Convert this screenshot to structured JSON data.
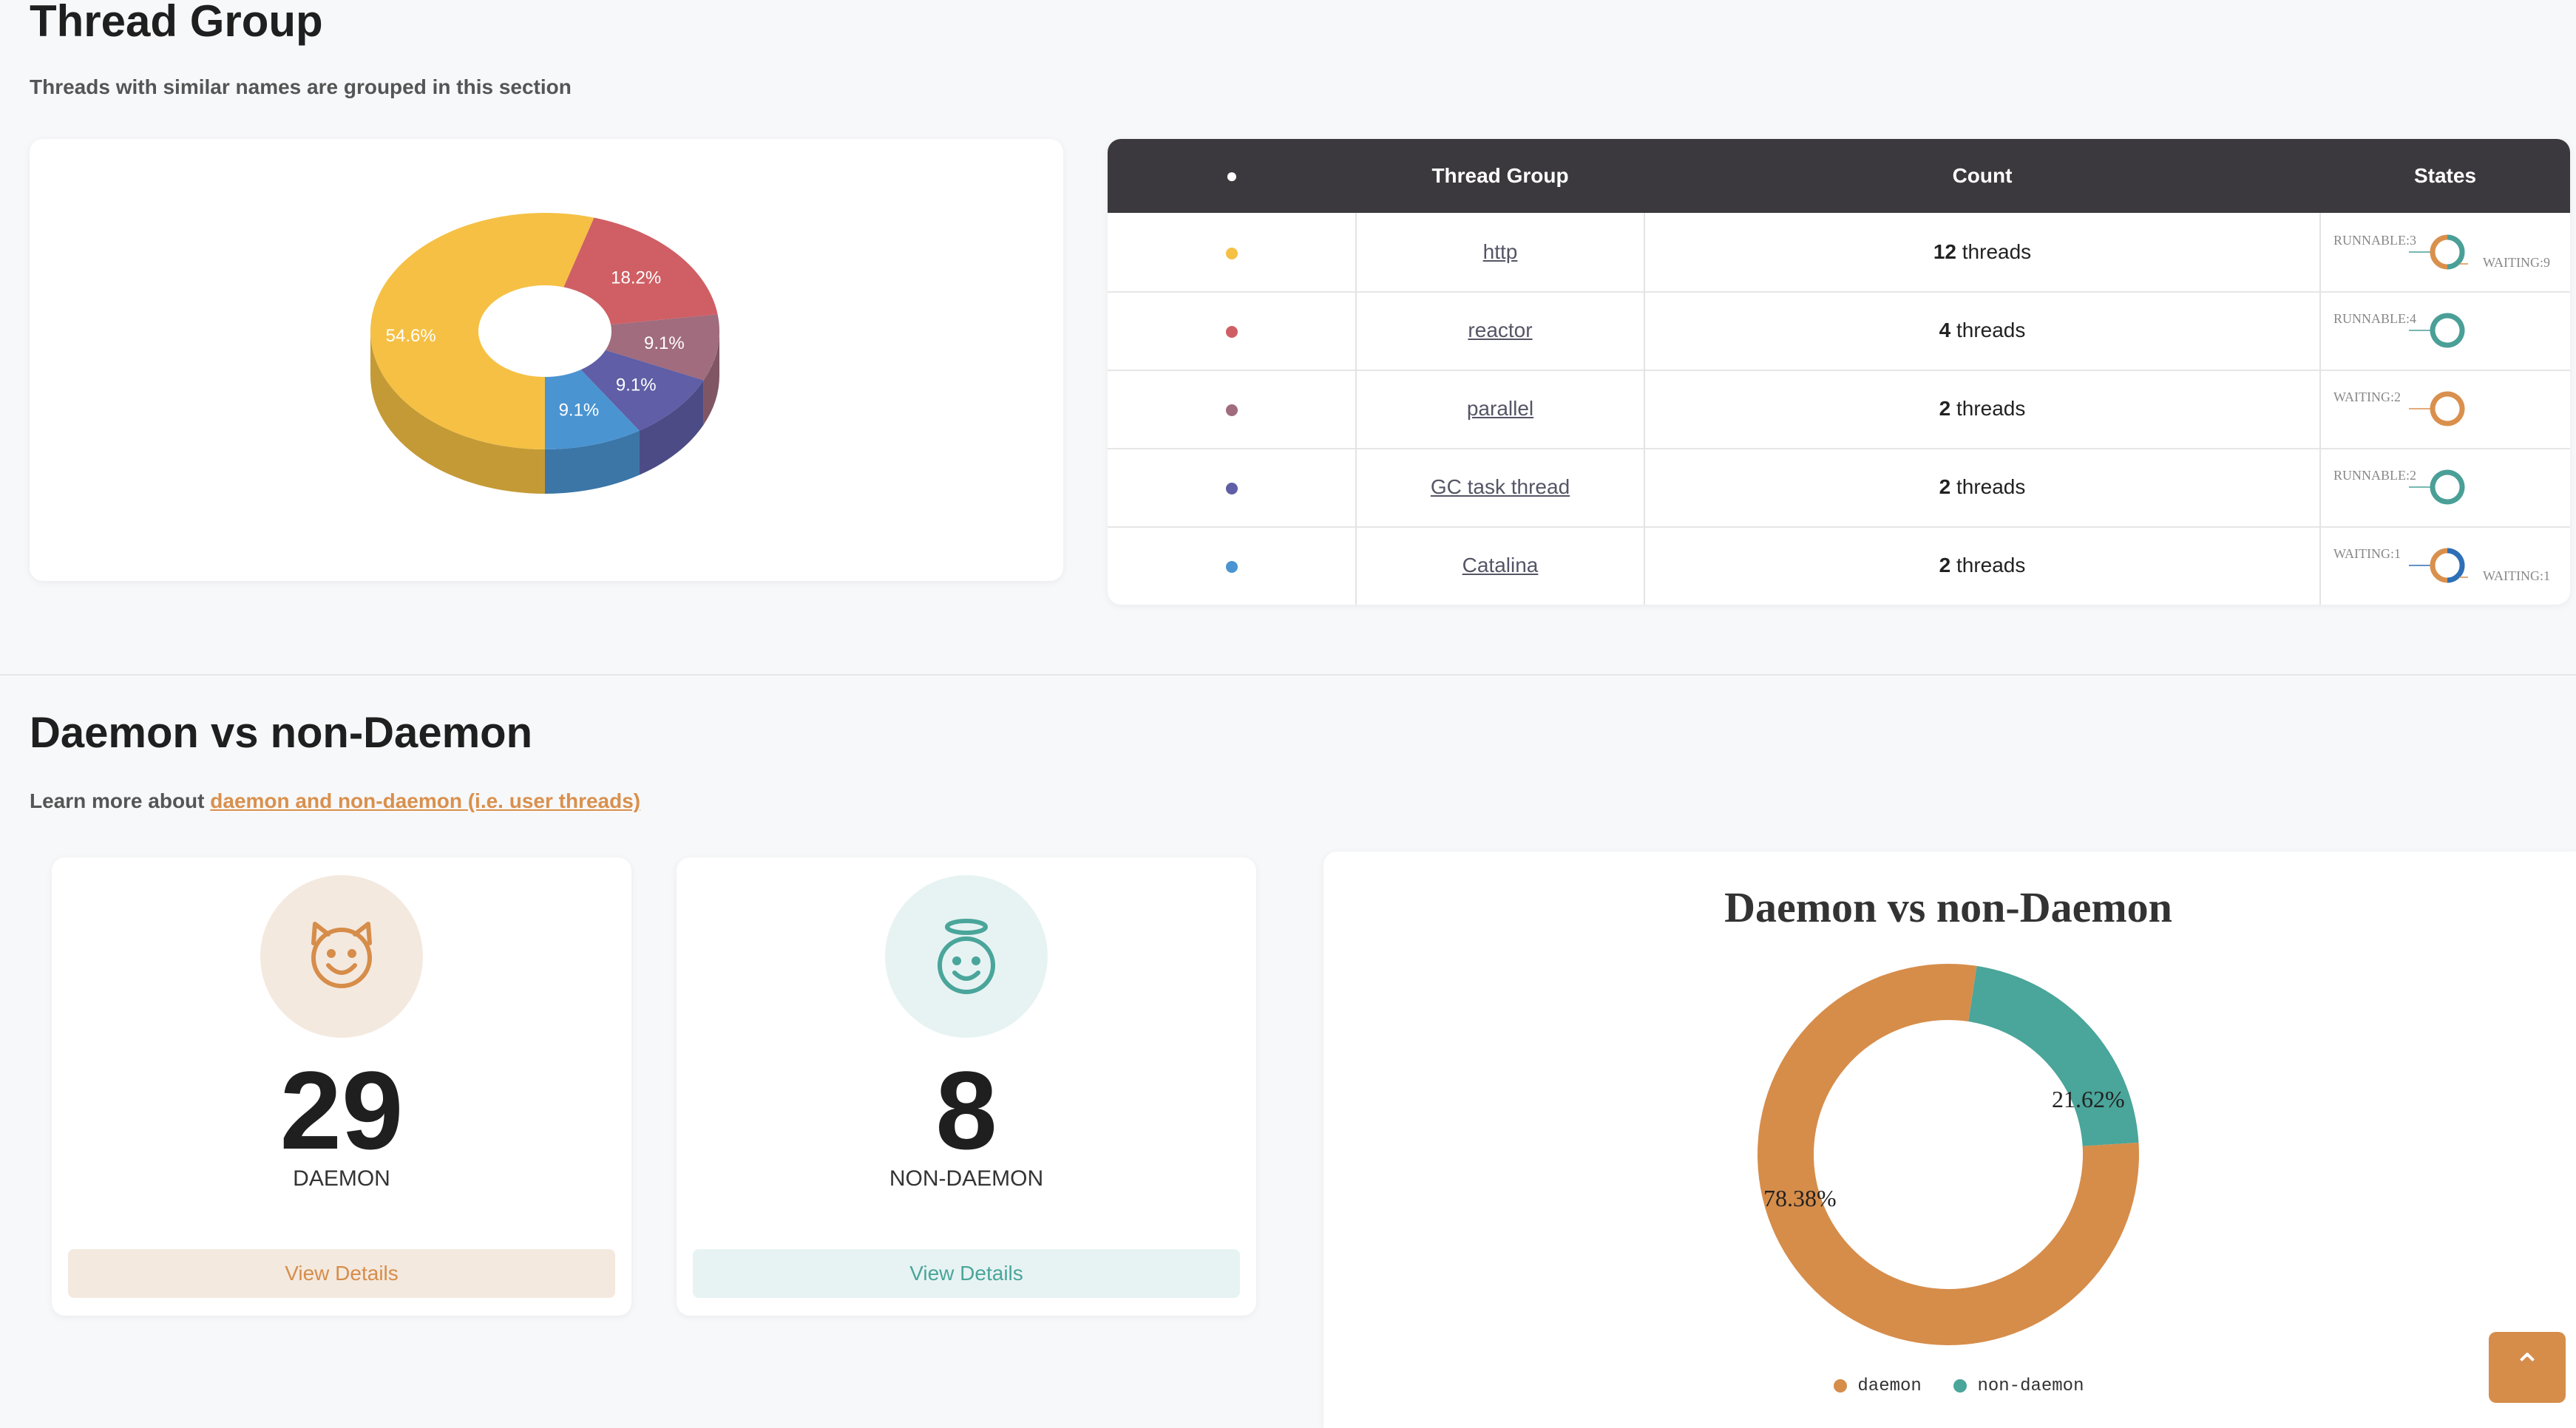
{
  "thread_group": {
    "title": "Thread Group",
    "subtitle": "Threads with similar names are grouped in this section",
    "pie": [
      {
        "label": "54.6%",
        "value": 54.6,
        "color": "#f5c044"
      },
      {
        "label": "18.2%",
        "value": 18.2,
        "color": "#cf5f64"
      },
      {
        "label": "9.1%",
        "value": 9.1,
        "color": "#a06c7e"
      },
      {
        "label": "9.1%",
        "value": 9.1,
        "color": "#5f5ea6"
      },
      {
        "label": "9.1%",
        "value": 9.1,
        "color": "#4a94d1"
      }
    ],
    "table": {
      "headers": {
        "dot": "●",
        "group": "Thread Group",
        "count": "Count",
        "states": "States"
      },
      "rows": [
        {
          "name": "http",
          "count": "12",
          "unit": "threads",
          "color": "#f5c044",
          "states": [
            {
              "label": "RUNNABLE:3",
              "color": "#4a9f97"
            },
            {
              "label": "WAITING:9",
              "color": "#d9904d"
            }
          ]
        },
        {
          "name": "reactor",
          "count": "4",
          "unit": "threads",
          "color": "#cf5f64",
          "states": [
            {
              "label": "RUNNABLE:4",
              "color": "#4a9f97"
            }
          ]
        },
        {
          "name": "parallel",
          "count": "2",
          "unit": "threads",
          "color": "#a06c7e",
          "states": [
            {
              "label": "WAITING:2",
              "color": "#d9904d"
            }
          ]
        },
        {
          "name": "GC task thread",
          "count": "2",
          "unit": "threads",
          "color": "#5f5ea6",
          "states": [
            {
              "label": "RUNNABLE:2",
              "color": "#4a9f97"
            }
          ]
        },
        {
          "name": "Catalina",
          "count": "2",
          "unit": "threads",
          "color": "#4a94d1",
          "states": [
            {
              "label": "WAITING:1",
              "color": "#2e6fb6"
            },
            {
              "label": "WAITING:1",
              "color": "#d9904d"
            }
          ]
        }
      ]
    }
  },
  "daemon": {
    "title": "Daemon vs non-Daemon",
    "learn_prefix": "Learn more about ",
    "learn_link": "daemon and non-daemon (i.e. user threads)",
    "daemon_count": "29",
    "daemon_label": "DAEMON",
    "non_daemon_count": "8",
    "non_daemon_label": "NON-DAEMON",
    "view_details": "View Details",
    "colors": {
      "daemon": "#d68d4a",
      "non_daemon": "#4aa59a",
      "daemon_bg": "#f4e9df",
      "non_daemon_bg": "#e7f3f3"
    }
  },
  "chart_data": {
    "type": "pie",
    "title": "Daemon vs non-Daemon",
    "categories": [
      "daemon",
      "non-daemon"
    ],
    "values": [
      78.38,
      21.62
    ],
    "labels": [
      "78.38%",
      "21.62%"
    ],
    "legend": "bottom"
  }
}
